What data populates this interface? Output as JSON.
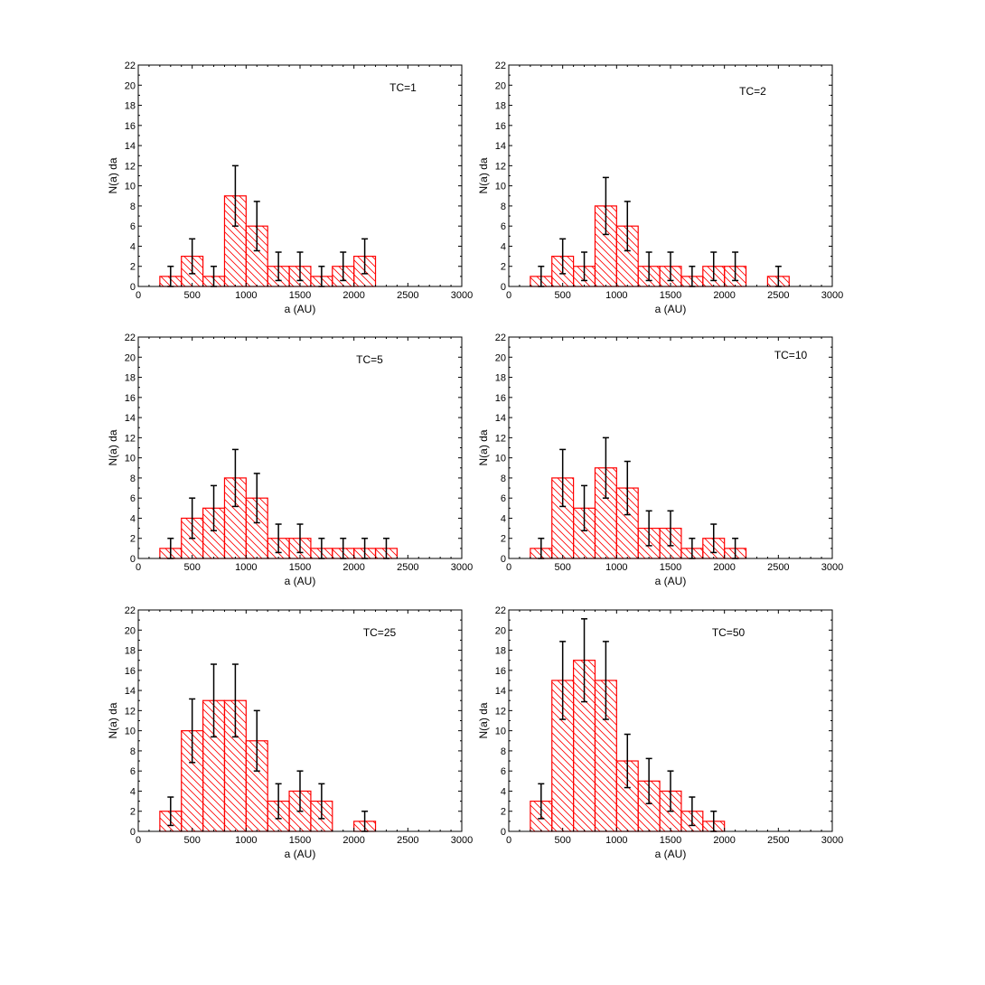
{
  "chart_data": [
    {
      "type": "bar",
      "annotation": "TC=1",
      "xlabel": "a (AU)",
      "ylabel": "N(a) da",
      "xlim": [
        0,
        3000
      ],
      "ylim": [
        0,
        22
      ],
      "xticks": [
        "0",
        "500",
        "1000",
        "1500",
        "2000",
        "2500",
        "3000"
      ],
      "yticks": [
        "0",
        "2",
        "4",
        "6",
        "8",
        "10",
        "12",
        "14",
        "16",
        "18",
        "20",
        "22"
      ],
      "bin_width": 200,
      "bins": [
        {
          "x0": 200,
          "value": 1,
          "err": 1
        },
        {
          "x0": 400,
          "value": 3,
          "err": 1.73
        },
        {
          "x0": 600,
          "value": 1,
          "err": 1
        },
        {
          "x0": 800,
          "value": 9,
          "err": 3
        },
        {
          "x0": 1000,
          "value": 6,
          "err": 2.45
        },
        {
          "x0": 1200,
          "value": 2,
          "err": 1.41
        },
        {
          "x0": 1400,
          "value": 2,
          "err": 1.41
        },
        {
          "x0": 1600,
          "value": 1,
          "err": 1
        },
        {
          "x0": 1800,
          "value": 2,
          "err": 1.41
        },
        {
          "x0": 2000,
          "value": 3,
          "err": 1.73
        }
      ]
    },
    {
      "type": "bar",
      "annotation": "TC=2",
      "xlabel": "a (AU)",
      "ylabel": "N(a) da",
      "xlim": [
        0,
        3000
      ],
      "ylim": [
        0,
        22
      ],
      "xticks": [
        "0",
        "500",
        "1000",
        "1500",
        "2000",
        "2500",
        "3000"
      ],
      "yticks": [
        "0",
        "2",
        "4",
        "6",
        "8",
        "10",
        "12",
        "14",
        "16",
        "18",
        "20",
        "22"
      ],
      "bin_width": 200,
      "bins": [
        {
          "x0": 200,
          "value": 1,
          "err": 1
        },
        {
          "x0": 400,
          "value": 3,
          "err": 1.73
        },
        {
          "x0": 600,
          "value": 2,
          "err": 1.41
        },
        {
          "x0": 800,
          "value": 8,
          "err": 2.83
        },
        {
          "x0": 1000,
          "value": 6,
          "err": 2.45
        },
        {
          "x0": 1200,
          "value": 2,
          "err": 1.41
        },
        {
          "x0": 1400,
          "value": 2,
          "err": 1.41
        },
        {
          "x0": 1600,
          "value": 1,
          "err": 1
        },
        {
          "x0": 1800,
          "value": 2,
          "err": 1.41
        },
        {
          "x0": 2000,
          "value": 2,
          "err": 1.41
        },
        {
          "x0": 2400,
          "value": 1,
          "err": 1
        }
      ]
    },
    {
      "type": "bar",
      "annotation": "TC=5",
      "xlabel": "a  (AU)",
      "ylabel": "N(a) da",
      "xlim": [
        0,
        3000
      ],
      "ylim": [
        0,
        22
      ],
      "xticks": [
        "0",
        "500",
        "1000",
        "1500",
        "2000",
        "2500",
        "3000"
      ],
      "yticks": [
        "0",
        "2",
        "4",
        "6",
        "8",
        "10",
        "12",
        "14",
        "16",
        "18",
        "20",
        "22"
      ],
      "bin_width": 200,
      "bins": [
        {
          "x0": 200,
          "value": 1,
          "err": 1
        },
        {
          "x0": 400,
          "value": 4,
          "err": 2
        },
        {
          "x0": 600,
          "value": 5,
          "err": 2.24
        },
        {
          "x0": 800,
          "value": 8,
          "err": 2.83
        },
        {
          "x0": 1000,
          "value": 6,
          "err": 2.45
        },
        {
          "x0": 1200,
          "value": 2,
          "err": 1.41
        },
        {
          "x0": 1400,
          "value": 2,
          "err": 1.41
        },
        {
          "x0": 1600,
          "value": 1,
          "err": 1
        },
        {
          "x0": 1800,
          "value": 1,
          "err": 1
        },
        {
          "x0": 2000,
          "value": 1,
          "err": 1
        },
        {
          "x0": 2200,
          "value": 1,
          "err": 1
        }
      ]
    },
    {
      "type": "bar",
      "annotation": "TC=10",
      "xlabel": "a (AU)",
      "ylabel": "N(a) da",
      "xlim": [
        0,
        3000
      ],
      "ylim": [
        0,
        22
      ],
      "xticks": [
        "0",
        "500",
        "1000",
        "1500",
        "2000",
        "2500",
        "3000"
      ],
      "yticks": [
        "0",
        "2",
        "4",
        "6",
        "8",
        "10",
        "12",
        "14",
        "16",
        "18",
        "20",
        "22"
      ],
      "bin_width": 200,
      "bins": [
        {
          "x0": 200,
          "value": 1,
          "err": 1
        },
        {
          "x0": 400,
          "value": 8,
          "err": 2.83
        },
        {
          "x0": 600,
          "value": 5,
          "err": 2.24
        },
        {
          "x0": 800,
          "value": 9,
          "err": 3
        },
        {
          "x0": 1000,
          "value": 7,
          "err": 2.65
        },
        {
          "x0": 1200,
          "value": 3,
          "err": 1.73
        },
        {
          "x0": 1400,
          "value": 3,
          "err": 1.73
        },
        {
          "x0": 1600,
          "value": 1,
          "err": 1
        },
        {
          "x0": 1800,
          "value": 2,
          "err": 1.41
        },
        {
          "x0": 2000,
          "value": 1,
          "err": 1
        }
      ]
    },
    {
      "type": "bar",
      "annotation": "TC=25",
      "xlabel": "a (AU)",
      "ylabel": "N(a) da",
      "xlim": [
        0,
        3000
      ],
      "ylim": [
        0,
        22
      ],
      "xticks": [
        "0",
        "500",
        "1000",
        "1500",
        "2000",
        "2500",
        "3000"
      ],
      "yticks": [
        "0",
        "2",
        "4",
        "6",
        "8",
        "10",
        "12",
        "14",
        "16",
        "18",
        "20",
        "22"
      ],
      "bin_width": 200,
      "bins": [
        {
          "x0": 200,
          "value": 2,
          "err": 1.41
        },
        {
          "x0": 400,
          "value": 10,
          "err": 3.16
        },
        {
          "x0": 600,
          "value": 13,
          "err": 3.61
        },
        {
          "x0": 800,
          "value": 13,
          "err": 3.61
        },
        {
          "x0": 1000,
          "value": 9,
          "err": 3
        },
        {
          "x0": 1200,
          "value": 3,
          "err": 1.73
        },
        {
          "x0": 1400,
          "value": 4,
          "err": 2
        },
        {
          "x0": 1600,
          "value": 3,
          "err": 1.73
        },
        {
          "x0": 2000,
          "value": 1,
          "err": 1
        }
      ]
    },
    {
      "type": "bar",
      "annotation": "TC=50",
      "xlabel": "a (AU)",
      "ylabel": "N(a) da",
      "xlim": [
        0,
        3000
      ],
      "ylim": [
        0,
        22
      ],
      "xticks": [
        "0",
        "500",
        "1000",
        "1500",
        "2000",
        "2500",
        "3000"
      ],
      "yticks": [
        "0",
        "2",
        "4",
        "6",
        "8",
        "10",
        "12",
        "14",
        "16",
        "18",
        "20",
        "22"
      ],
      "bin_width": 200,
      "bins": [
        {
          "x0": 200,
          "value": 3,
          "err": 1.73
        },
        {
          "x0": 400,
          "value": 15,
          "err": 3.87
        },
        {
          "x0": 600,
          "value": 17,
          "err": 4.12
        },
        {
          "x0": 800,
          "value": 15,
          "err": 3.87
        },
        {
          "x0": 1000,
          "value": 7,
          "err": 2.65
        },
        {
          "x0": 1200,
          "value": 5,
          "err": 2.24
        },
        {
          "x0": 1400,
          "value": 4,
          "err": 2
        },
        {
          "x0": 1600,
          "value": 2,
          "err": 1.41
        },
        {
          "x0": 1800,
          "value": 1,
          "err": 1
        }
      ]
    }
  ],
  "colors": {
    "bar_stroke": "#ff0000",
    "hatch": "#ff0000",
    "errorbar": "#000000",
    "axes": "#000000",
    "background": "#ffffff"
  }
}
